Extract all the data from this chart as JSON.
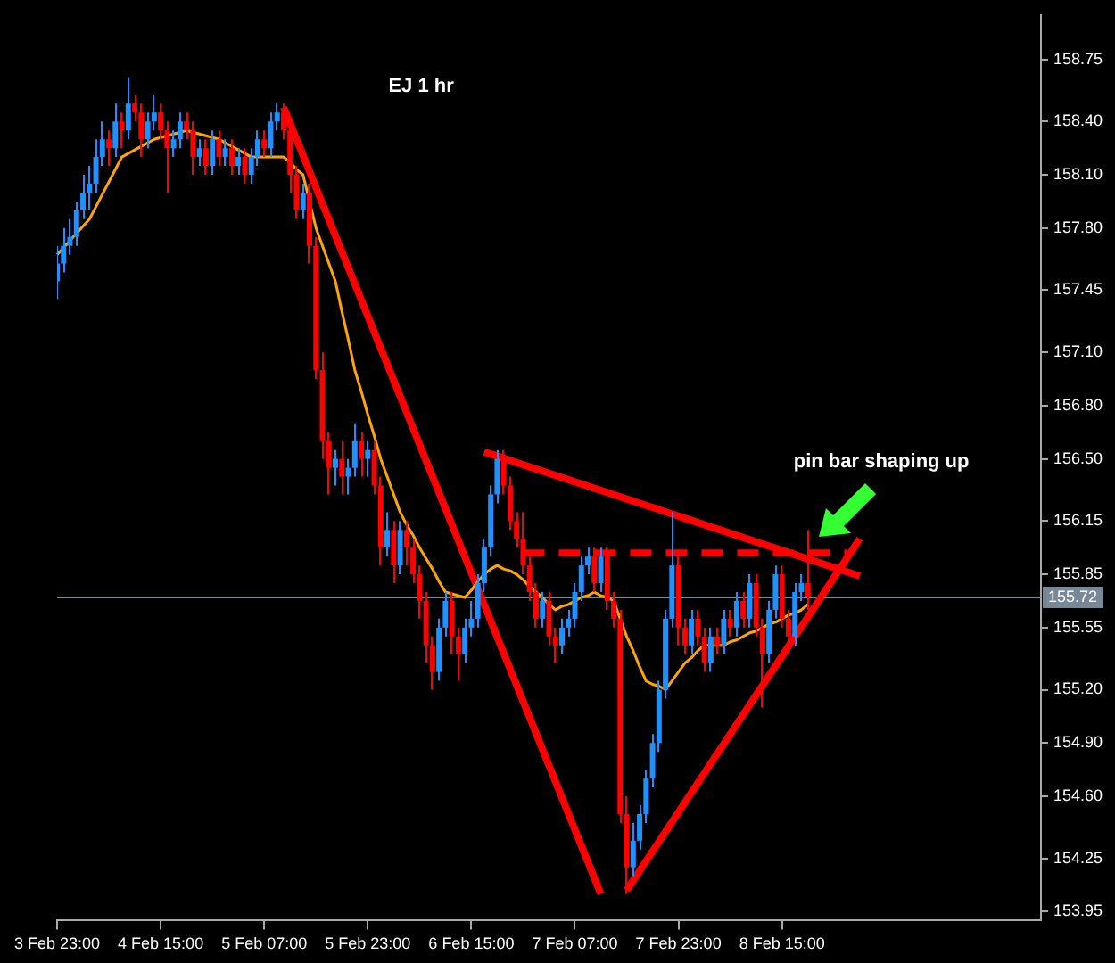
{
  "chart_data": {
    "type": "candlestick",
    "title": "EJ 1 hr",
    "categories": [
      "3 Feb 23:00",
      null,
      null,
      null,
      null,
      null,
      null,
      null,
      null,
      null,
      null,
      null,
      null,
      null,
      null,
      null,
      "4 Feb 15:00",
      null,
      null,
      null,
      null,
      null,
      null,
      null,
      null,
      null,
      null,
      null,
      null,
      null,
      null,
      null,
      "5 Feb 07:00",
      null,
      null,
      null,
      null,
      null,
      null,
      null,
      null,
      null,
      null,
      null,
      null,
      null,
      null,
      null,
      "5 Feb 23:00",
      null,
      null,
      null,
      null,
      null,
      null,
      null,
      null,
      null,
      null,
      null,
      null,
      null,
      null,
      null,
      "6 Feb 15:00",
      null,
      null,
      null,
      null,
      null,
      null,
      null,
      null,
      null,
      null,
      null,
      null,
      null,
      null,
      null,
      "7 Feb 07:00",
      null,
      null,
      null,
      null,
      null,
      null,
      null,
      null,
      null,
      null,
      null,
      null,
      null,
      null,
      null,
      "7 Feb 23:00",
      null,
      null,
      null,
      null,
      null,
      null,
      null,
      null,
      null,
      null,
      null,
      null,
      null,
      null,
      null,
      "8 Feb 15:00",
      null,
      null,
      null,
      null,
      null,
      null,
      null,
      null,
      null,
      null,
      null,
      null,
      null,
      null,
      null,
      null,
      null,
      null,
      null,
      null,
      null,
      null,
      null,
      null,
      null,
      null,
      null,
      null,
      null,
      null,
      null,
      null,
      null,
      null,
      null,
      null,
      null,
      null,
      null,
      null
    ],
    "ohlc": [
      [
        157.5,
        157.7,
        157.4,
        157.6
      ],
      [
        157.6,
        157.8,
        157.55,
        157.7
      ],
      [
        157.7,
        157.85,
        157.65,
        157.75
      ],
      [
        157.75,
        157.95,
        157.7,
        157.9
      ],
      [
        157.9,
        158.1,
        157.85,
        158.0
      ],
      [
        158.0,
        158.15,
        157.9,
        158.05
      ],
      [
        158.05,
        158.3,
        158.0,
        158.2
      ],
      [
        158.2,
        158.4,
        158.15,
        158.3
      ],
      [
        158.3,
        158.35,
        158.15,
        158.25
      ],
      [
        158.25,
        158.5,
        158.2,
        158.4
      ],
      [
        158.4,
        158.45,
        158.25,
        158.35
      ],
      [
        158.35,
        158.65,
        158.3,
        158.5
      ],
      [
        158.5,
        158.55,
        158.4,
        158.45
      ],
      [
        158.45,
        158.5,
        158.2,
        158.3
      ],
      [
        158.3,
        158.45,
        158.25,
        158.4
      ],
      [
        158.4,
        158.55,
        158.35,
        158.45
      ],
      [
        158.45,
        158.5,
        158.3,
        158.35
      ],
      [
        158.35,
        158.4,
        158.0,
        158.25
      ],
      [
        158.25,
        158.35,
        158.2,
        158.3
      ],
      [
        158.3,
        158.45,
        158.25,
        158.4
      ],
      [
        158.4,
        158.45,
        158.3,
        158.35
      ],
      [
        158.35,
        158.4,
        158.1,
        158.2
      ],
      [
        158.2,
        158.3,
        158.15,
        158.25
      ],
      [
        158.25,
        158.3,
        158.1,
        158.15
      ],
      [
        158.15,
        158.35,
        158.1,
        158.3
      ],
      [
        158.3,
        158.35,
        158.15,
        158.2
      ],
      [
        158.2,
        158.3,
        158.15,
        158.25
      ],
      [
        158.25,
        158.3,
        158.1,
        158.15
      ],
      [
        158.15,
        158.25,
        158.1,
        158.2
      ],
      [
        158.2,
        158.25,
        158.05,
        158.1
      ],
      [
        158.1,
        158.25,
        158.05,
        158.2
      ],
      [
        158.2,
        158.35,
        158.15,
        158.3
      ],
      [
        158.3,
        158.35,
        158.2,
        158.25
      ],
      [
        158.25,
        158.45,
        158.2,
        158.4
      ],
      [
        158.4,
        158.5,
        158.35,
        158.45
      ],
      [
        158.45,
        158.5,
        158.3,
        158.35
      ],
      [
        158.35,
        158.4,
        158.0,
        158.1
      ],
      [
        158.1,
        158.15,
        157.85,
        157.9
      ],
      [
        157.9,
        158.05,
        157.85,
        158.0
      ],
      [
        158.0,
        158.05,
        157.6,
        157.7
      ],
      [
        157.7,
        157.75,
        156.95,
        157.0
      ],
      [
        157.0,
        157.1,
        156.5,
        156.6
      ],
      [
        156.6,
        156.65,
        156.3,
        156.45
      ],
      [
        156.45,
        156.55,
        156.35,
        156.5
      ],
      [
        156.5,
        156.6,
        156.3,
        156.4
      ],
      [
        156.4,
        156.5,
        156.3,
        156.45
      ],
      [
        156.45,
        156.7,
        156.4,
        156.6
      ],
      [
        156.6,
        156.65,
        156.4,
        156.5
      ],
      [
        156.5,
        156.6,
        156.4,
        156.55
      ],
      [
        156.55,
        156.6,
        156.3,
        156.35
      ],
      [
        156.35,
        156.4,
        155.9,
        156.0
      ],
      [
        156.0,
        156.2,
        155.95,
        156.1
      ],
      [
        156.1,
        156.15,
        155.8,
        155.9
      ],
      [
        155.9,
        156.15,
        155.85,
        156.1
      ],
      [
        156.1,
        156.15,
        155.9,
        156.0
      ],
      [
        156.0,
        156.05,
        155.8,
        155.85
      ],
      [
        155.85,
        155.9,
        155.6,
        155.7
      ],
      [
        155.7,
        155.75,
        155.35,
        155.45
      ],
      [
        155.45,
        155.5,
        155.2,
        155.3
      ],
      [
        155.3,
        155.6,
        155.25,
        155.55
      ],
      [
        155.55,
        155.75,
        155.5,
        155.7
      ],
      [
        155.7,
        155.75,
        155.4,
        155.5
      ],
      [
        155.5,
        155.55,
        155.25,
        155.4
      ],
      [
        155.4,
        155.6,
        155.35,
        155.55
      ],
      [
        155.55,
        155.7,
        155.5,
        155.6
      ],
      [
        155.6,
        155.85,
        155.55,
        155.8
      ],
      [
        155.8,
        156.05,
        155.75,
        156.0
      ],
      [
        156.0,
        156.35,
        155.95,
        156.3
      ],
      [
        156.3,
        156.55,
        156.25,
        156.5
      ],
      [
        156.5,
        156.55,
        156.3,
        156.35
      ],
      [
        156.35,
        156.4,
        156.1,
        156.15
      ],
      [
        156.15,
        156.2,
        156.0,
        156.05
      ],
      [
        156.05,
        156.2,
        155.85,
        155.9
      ],
      [
        155.9,
        155.95,
        155.7,
        155.75
      ],
      [
        155.75,
        155.8,
        155.55,
        155.6
      ],
      [
        155.6,
        155.75,
        155.55,
        155.7
      ],
      [
        155.7,
        155.75,
        155.45,
        155.5
      ],
      [
        155.5,
        155.55,
        155.35,
        155.45
      ],
      [
        155.45,
        155.6,
        155.4,
        155.55
      ],
      [
        155.55,
        155.65,
        155.5,
        155.6
      ],
      [
        155.6,
        155.8,
        155.55,
        155.75
      ],
      [
        155.75,
        155.95,
        155.7,
        155.9
      ],
      [
        155.9,
        156.0,
        155.85,
        155.95
      ],
      [
        155.95,
        156.0,
        155.75,
        155.8
      ],
      [
        155.8,
        156.0,
        155.75,
        155.95
      ],
      [
        155.95,
        156.0,
        155.65,
        155.7
      ],
      [
        155.7,
        155.75,
        155.55,
        155.6
      ],
      [
        155.6,
        155.65,
        154.45,
        154.5
      ],
      [
        154.5,
        154.6,
        154.05,
        154.2
      ],
      [
        154.2,
        154.45,
        154.15,
        154.35
      ],
      [
        154.35,
        154.55,
        154.3,
        154.5
      ],
      [
        154.5,
        154.75,
        154.45,
        154.7
      ],
      [
        154.7,
        154.95,
        154.65,
        154.9
      ],
      [
        154.9,
        155.25,
        154.85,
        155.2
      ],
      [
        155.2,
        155.65,
        155.15,
        155.6
      ],
      [
        155.6,
        156.2,
        155.55,
        155.9
      ],
      [
        155.9,
        155.95,
        155.45,
        155.55
      ],
      [
        155.55,
        155.6,
        155.4,
        155.45
      ],
      [
        155.45,
        155.65,
        155.4,
        155.6
      ],
      [
        155.6,
        155.65,
        155.45,
        155.5
      ],
      [
        155.5,
        155.55,
        155.3,
        155.35
      ],
      [
        155.35,
        155.55,
        155.3,
        155.5
      ],
      [
        155.5,
        155.55,
        155.4,
        155.45
      ],
      [
        155.45,
        155.65,
        155.4,
        155.6
      ],
      [
        155.6,
        155.65,
        155.5,
        155.55
      ],
      [
        155.55,
        155.75,
        155.5,
        155.7
      ],
      [
        155.7,
        155.75,
        155.55,
        155.6
      ],
      [
        155.6,
        155.85,
        155.55,
        155.8
      ],
      [
        155.8,
        155.85,
        155.5,
        155.55
      ],
      [
        155.55,
        155.6,
        155.1,
        155.4
      ],
      [
        155.4,
        155.7,
        155.35,
        155.65
      ],
      [
        155.65,
        155.9,
        155.6,
        155.85
      ],
      [
        155.85,
        155.9,
        155.55,
        155.6
      ],
      [
        155.6,
        155.65,
        155.4,
        155.5
      ],
      [
        155.5,
        155.8,
        155.45,
        155.75
      ],
      [
        155.75,
        155.85,
        155.7,
        155.8
      ],
      [
        155.8,
        156.1,
        155.65,
        155.72
      ],
      null,
      null,
      null,
      null,
      null,
      null,
      null,
      null,
      null,
      null,
      null,
      null,
      null,
      null,
      null,
      null,
      null,
      null,
      null,
      null,
      null,
      null,
      null,
      null,
      null,
      null,
      null,
      null,
      null,
      null,
      null,
      null,
      null,
      null,
      null,
      null
    ],
    "colors": [
      "#1e90ff",
      "#1e90ff",
      "#1e90ff",
      "#1e90ff",
      "#1e90ff",
      "#1e90ff",
      "#1e90ff",
      "#1e90ff",
      "#ff0000",
      "#1e90ff",
      "#ff0000",
      "#1e90ff",
      "#ff0000",
      "#ff0000",
      "#1e90ff",
      "#1e90ff",
      "#ff0000",
      "#ff0000",
      "#1e90ff",
      "#1e90ff",
      "#ff0000",
      "#ff0000",
      "#1e90ff",
      "#ff0000",
      "#1e90ff",
      "#ff0000",
      "#1e90ff",
      "#ff0000",
      "#1e90ff",
      "#ff0000",
      "#1e90ff",
      "#1e90ff",
      "#ff0000",
      "#1e90ff",
      "#1e90ff",
      "#ff0000",
      "#ff0000",
      "#ff0000",
      "#1e90ff",
      "#ff0000",
      "#ff0000",
      "#ff0000",
      "#ff0000",
      "#1e90ff",
      "#ff0000",
      "#1e90ff",
      "#1e90ff",
      "#ff0000",
      "#1e90ff",
      "#ff0000",
      "#ff0000",
      "#1e90ff",
      "#ff0000",
      "#1e90ff",
      "#ff0000",
      "#ff0000",
      "#ff0000",
      "#ff0000",
      "#ff0000",
      "#1e90ff",
      "#1e90ff",
      "#ff0000",
      "#ff0000",
      "#1e90ff",
      "#1e90ff",
      "#1e90ff",
      "#1e90ff",
      "#1e90ff",
      "#1e90ff",
      "#ff0000",
      "#ff0000",
      "#ff0000",
      "#ff0000",
      "#ff0000",
      "#ff0000",
      "#1e90ff",
      "#ff0000",
      "#ff0000",
      "#1e90ff",
      "#1e90ff",
      "#1e90ff",
      "#1e90ff",
      "#1e90ff",
      "#ff0000",
      "#1e90ff",
      "#ff0000",
      "#ff0000",
      "#ff0000",
      "#ff0000",
      "#1e90ff",
      "#1e90ff",
      "#1e90ff",
      "#1e90ff",
      "#1e90ff",
      "#1e90ff",
      "#1e90ff",
      "#ff0000",
      "#ff0000",
      "#1e90ff",
      "#ff0000",
      "#ff0000",
      "#1e90ff",
      "#ff0000",
      "#1e90ff",
      "#ff0000",
      "#1e90ff",
      "#ff0000",
      "#1e90ff",
      "#ff0000",
      "#ff0000",
      "#1e90ff",
      "#1e90ff",
      "#ff0000",
      "#ff0000",
      "#1e90ff",
      "#1e90ff",
      "#ff0000",
      null,
      null,
      null,
      null,
      null,
      null,
      null,
      null,
      null,
      null,
      null,
      null,
      null,
      null,
      null,
      null,
      null,
      null,
      null,
      null,
      null,
      null,
      null,
      null,
      null,
      null,
      null,
      null,
      null,
      null,
      null,
      null,
      null,
      null,
      null,
      null
    ],
    "series": [
      {
        "type": "line",
        "color": "#ffa500",
        "values": [
          157.65,
          157.69,
          157.73,
          157.77,
          157.81,
          157.85,
          157.92,
          157.99,
          158.06,
          158.13,
          158.2,
          158.22,
          158.24,
          158.26,
          158.28,
          158.3,
          158.31,
          158.32,
          158.33,
          158.34,
          158.35,
          158.34,
          158.33,
          158.32,
          158.31,
          158.3,
          158.28,
          158.26,
          158.24,
          158.22,
          158.2,
          158.2,
          158.2,
          158.2,
          158.2,
          158.2,
          158.17,
          158.13,
          158.1,
          157.95,
          157.8,
          157.7,
          157.6,
          157.5,
          157.33,
          157.17,
          157.0,
          156.88,
          156.75,
          156.63,
          156.5,
          156.4,
          156.3,
          156.2,
          156.13,
          156.07,
          156.0,
          155.94,
          155.88,
          155.81,
          155.75,
          155.74,
          155.73,
          155.72,
          155.76,
          155.81,
          155.85,
          155.88,
          155.9,
          155.88,
          155.87,
          155.85,
          155.82,
          155.78,
          155.75,
          155.72,
          155.68,
          155.65,
          155.67,
          155.68,
          155.7,
          155.72,
          155.73,
          155.75,
          155.73,
          155.72,
          155.7,
          155.6,
          155.5,
          155.42,
          155.33,
          155.25,
          155.23,
          155.22,
          155.2,
          155.25,
          155.3,
          155.35,
          155.38,
          155.42,
          155.45,
          155.45,
          155.45,
          155.45,
          155.47,
          155.48,
          155.5,
          155.52,
          155.53,
          155.55,
          155.57,
          155.58,
          155.6,
          155.62,
          155.63,
          155.65,
          155.68,
          null,
          null,
          null,
          null,
          null,
          null,
          null,
          null,
          null,
          null,
          null,
          null,
          null,
          null,
          null,
          null,
          null,
          null,
          null,
          null,
          null,
          null,
          null,
          null,
          null,
          null,
          null,
          null,
          null,
          null,
          null,
          null,
          null,
          null,
          null,
          null
        ]
      },
      {
        "type": "line",
        "color": "#ff0000",
        "values": [
          null,
          null,
          null,
          null,
          null,
          null,
          null,
          null,
          null,
          null,
          null,
          null,
          null,
          null,
          null,
          null,
          null,
          null,
          null,
          null,
          null,
          null,
          null,
          null,
          null,
          null,
          null,
          null,
          null,
          null,
          null,
          null,
          null,
          null,
          null,
          158.48,
          null,
          null,
          null,
          null,
          null,
          null,
          null,
          null,
          null,
          null,
          null,
          null,
          null,
          null,
          null,
          null,
          null,
          null,
          null,
          null,
          null,
          null,
          null,
          null,
          null,
          null,
          null,
          null,
          null,
          null,
          null,
          null,
          null,
          null,
          null,
          null,
          null,
          null,
          null,
          null,
          null,
          null,
          null,
          null,
          null,
          null,
          null,
          null,
          154.05,
          null,
          null,
          null,
          null,
          null,
          null,
          null,
          null,
          null,
          null,
          null,
          null,
          null,
          null,
          null,
          null,
          null,
          null,
          null,
          null,
          null,
          null,
          null,
          null,
          null,
          null,
          null,
          null,
          null,
          null,
          null,
          null,
          null,
          null,
          null,
          null,
          null,
          null,
          null,
          null,
          null,
          null,
          null,
          null,
          null,
          null,
          null,
          null,
          null,
          null,
          null,
          null,
          null,
          null,
          null,
          null,
          null,
          null,
          null,
          null,
          null,
          null,
          null,
          null,
          null,
          null,
          null,
          null
        ]
      },
      {
        "type": "line",
        "color": "#ff0000",
        "values": [
          null,
          null,
          null,
          null,
          null,
          null,
          null,
          null,
          null,
          null,
          null,
          null,
          null,
          null,
          null,
          null,
          null,
          null,
          null,
          null,
          null,
          null,
          null,
          null,
          null,
          null,
          null,
          null,
          null,
          null,
          null,
          null,
          null,
          null,
          null,
          null,
          null,
          null,
          null,
          null,
          null,
          null,
          null,
          null,
          null,
          null,
          null,
          null,
          null,
          null,
          null,
          null,
          null,
          null,
          null,
          null,
          null,
          null,
          null,
          null,
          null,
          null,
          null,
          null,
          null,
          null,
          null,
          null,
          null,
          null,
          null,
          null,
          null,
          null,
          null,
          null,
          null,
          null,
          null,
          null,
          null,
          null,
          null,
          null,
          null,
          null,
          null,
          null,
          154.07,
          null,
          null,
          null,
          null,
          null,
          null,
          null,
          null,
          null,
          null,
          null,
          null,
          null,
          null,
          null,
          null,
          null,
          null,
          null,
          null,
          null,
          null,
          null,
          null,
          null,
          null,
          null,
          null,
          null,
          null,
          null,
          null,
          null,
          null,
          null,
          156.05,
          null,
          null,
          null,
          null,
          null,
          null,
          null,
          null,
          null,
          null,
          null,
          null,
          null,
          null,
          null,
          null,
          null,
          null,
          null,
          null,
          null,
          null,
          null,
          null,
          null,
          null,
          null,
          null
        ]
      },
      {
        "type": "line",
        "color": "#ff0000",
        "values": [
          null,
          null,
          null,
          null,
          null,
          null,
          null,
          null,
          null,
          null,
          null,
          null,
          null,
          null,
          null,
          null,
          null,
          null,
          null,
          null,
          null,
          null,
          null,
          null,
          null,
          null,
          null,
          null,
          null,
          null,
          null,
          null,
          null,
          null,
          null,
          null,
          null,
          null,
          null,
          null,
          null,
          null,
          null,
          null,
          null,
          null,
          null,
          null,
          null,
          null,
          null,
          null,
          null,
          null,
          null,
          null,
          null,
          null,
          null,
          null,
          null,
          null,
          null,
          null,
          null,
          null,
          156.54,
          null,
          null,
          null,
          null,
          null,
          null,
          null,
          null,
          null,
          null,
          null,
          null,
          null,
          null,
          null,
          null,
          null,
          null,
          null,
          null,
          null,
          null,
          null,
          null,
          null,
          null,
          null,
          null,
          null,
          null,
          null,
          null,
          null,
          null,
          null,
          null,
          null,
          null,
          null,
          null,
          null,
          null,
          null,
          null,
          null,
          null,
          null,
          null,
          null,
          null,
          null,
          null,
          null,
          null,
          null,
          null,
          null,
          155.84,
          null,
          null,
          null,
          null,
          null,
          null,
          null,
          null,
          null,
          null,
          null,
          null,
          null,
          null,
          null,
          null,
          null,
          null,
          null,
          null,
          null,
          null,
          null,
          null,
          null,
          null,
          null,
          null
        ]
      },
      {
        "type": "line",
        "color": "#ff0000",
        "line_style": "dashed",
        "values": [
          null,
          null,
          null,
          null,
          null,
          null,
          null,
          null,
          null,
          null,
          null,
          null,
          null,
          null,
          null,
          null,
          null,
          null,
          null,
          null,
          null,
          null,
          null,
          null,
          null,
          null,
          null,
          null,
          null,
          null,
          null,
          null,
          null,
          null,
          null,
          null,
          null,
          null,
          null,
          null,
          null,
          null,
          null,
          null,
          null,
          null,
          null,
          null,
          null,
          null,
          null,
          null,
          null,
          null,
          null,
          null,
          null,
          null,
          null,
          null,
          null,
          null,
          null,
          null,
          null,
          null,
          null,
          null,
          null,
          null,
          null,
          null,
          155.97,
          null,
          null,
          null,
          null,
          null,
          null,
          null,
          null,
          null,
          null,
          null,
          null,
          null,
          null,
          null,
          null,
          null,
          null,
          null,
          null,
          null,
          null,
          null,
          null,
          null,
          null,
          null,
          null,
          null,
          null,
          null,
          null,
          null,
          null,
          null,
          null,
          null,
          null,
          null,
          null,
          null,
          null,
          null,
          null,
          null,
          null,
          null,
          null,
          null,
          155.97,
          null,
          null,
          null,
          null,
          null,
          null,
          null,
          null,
          null,
          null,
          null,
          null,
          null,
          null,
          null,
          null,
          null,
          null,
          null,
          null,
          null,
          null,
          null,
          null,
          null,
          null,
          null,
          null,
          null,
          null
        ]
      }
    ],
    "ylim": [
      153.9,
      159.0
    ],
    "yticks": [
      {
        "value": 153.95,
        "label": "153.95"
      },
      {
        "value": 154.25,
        "label": "154.25"
      },
      {
        "value": 154.6,
        "label": "154.60"
      },
      {
        "value": 154.9,
        "label": "154.90"
      },
      {
        "value": 155.2,
        "label": "155.20"
      },
      {
        "value": 155.55,
        "label": "155.55"
      },
      {
        "value": 155.85,
        "label": "155.85"
      },
      {
        "value": 156.15,
        "label": "156.15"
      },
      {
        "value": 156.5,
        "label": "156.50"
      },
      {
        "value": 156.8,
        "label": "156.80"
      },
      {
        "value": 157.1,
        "label": "157.10"
      },
      {
        "value": 157.45,
        "label": "157.45"
      },
      {
        "value": 157.8,
        "label": "157.80"
      },
      {
        "value": 158.1,
        "label": "158.10"
      },
      {
        "value": 158.4,
        "label": "158.40"
      },
      {
        "value": 158.75,
        "label": "158.75"
      }
    ],
    "ref_lines": [
      {
        "axis": "y",
        "value": 155.72,
        "label": "155.72",
        "color": "#778899"
      }
    ],
    "annotations": [
      "pin bar shaping up"
    ],
    "grid": false,
    "legend": false,
    "marker": "none",
    "line_style": "solid"
  }
}
